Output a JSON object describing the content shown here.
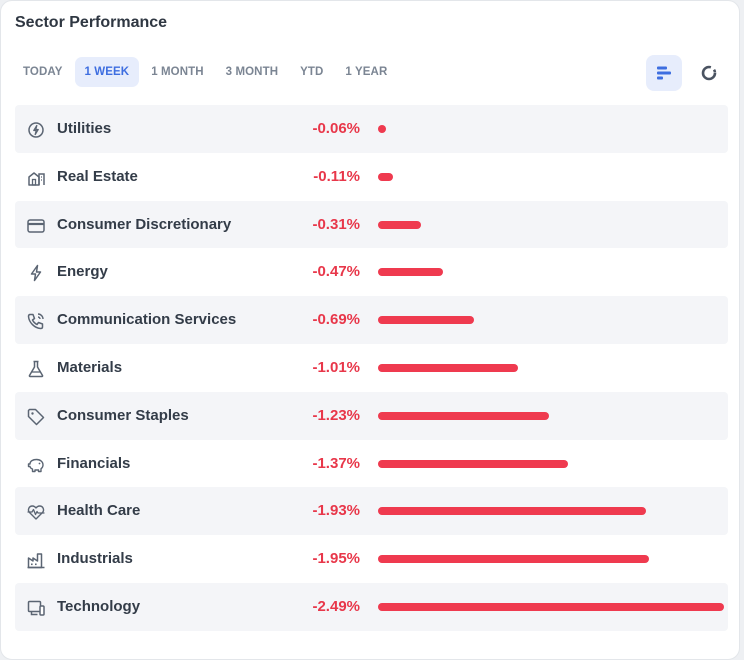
{
  "widget": {
    "title": "Sector Performance",
    "tabs": [
      {
        "label": "TODAY",
        "active": false
      },
      {
        "label": "1 WEEK",
        "active": true
      },
      {
        "label": "1 MONTH",
        "active": false
      },
      {
        "label": "3 MONTH",
        "active": false
      },
      {
        "label": "YTD",
        "active": false
      },
      {
        "label": "1 YEAR",
        "active": false
      }
    ],
    "view_toggle": [
      {
        "icon": "bar-chart-icon",
        "active": true
      },
      {
        "icon": "donut-chart-icon",
        "active": false
      }
    ]
  },
  "colors": {
    "negative": "#e8374a",
    "bar": "#ef3a4f",
    "accent": "#3e6ee0",
    "row_shade": "#f4f5f8"
  },
  "chart_data": {
    "type": "bar",
    "orientation": "horizontal",
    "categories": [
      "Utilities",
      "Real Estate",
      "Consumer Discretionary",
      "Energy",
      "Communication Services",
      "Materials",
      "Consumer Staples",
      "Financials",
      "Health Care",
      "Industrials",
      "Technology"
    ],
    "values": [
      -0.06,
      -0.11,
      -0.31,
      -0.47,
      -0.69,
      -1.01,
      -1.23,
      -1.37,
      -1.93,
      -1.95,
      -2.49
    ],
    "labels": [
      "-0.06%",
      "-0.11%",
      "-0.31%",
      "-0.47%",
      "-0.69%",
      "-1.01%",
      "-1.23%",
      "-1.37%",
      "-1.93%",
      "-1.95%",
      "-2.49%"
    ],
    "icons": [
      "utilities-icon",
      "real-estate-icon",
      "consumer-discretionary-icon",
      "energy-icon",
      "communication-services-icon",
      "materials-icon",
      "consumer-staples-icon",
      "financials-icon",
      "health-care-icon",
      "industrials-icon",
      "technology-icon"
    ]
  }
}
